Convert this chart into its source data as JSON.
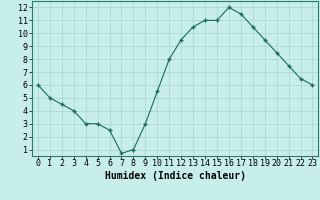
{
  "x": [
    0,
    1,
    2,
    3,
    4,
    5,
    6,
    7,
    8,
    9,
    10,
    11,
    12,
    13,
    14,
    15,
    16,
    17,
    18,
    19,
    20,
    21,
    22,
    23
  ],
  "y": [
    6.0,
    5.0,
    4.5,
    4.0,
    3.0,
    3.0,
    2.5,
    0.7,
    1.0,
    3.0,
    5.5,
    8.0,
    9.5,
    10.5,
    11.0,
    11.0,
    12.0,
    11.5,
    10.5,
    9.5,
    8.5,
    7.5,
    6.5,
    6.0
  ],
  "line_color": "#1a6b5e",
  "marker_color": "#1a6b5e",
  "bg_color": "#c8eeec",
  "grid_color": "#a8d4d0",
  "xlabel": "Humidex (Indice chaleur)",
  "xlabel_fontsize": 7,
  "xlim": [
    -0.5,
    23.5
  ],
  "ylim": [
    0.5,
    12.5
  ],
  "xtick_labels": [
    "0",
    "1",
    "2",
    "3",
    "4",
    "5",
    "6",
    "7",
    "8",
    "9",
    "10",
    "11",
    "12",
    "13",
    "14",
    "15",
    "16",
    "17",
    "18",
    "19",
    "20",
    "21",
    "22",
    "23"
  ],
  "ytick_values": [
    1,
    2,
    3,
    4,
    5,
    6,
    7,
    8,
    9,
    10,
    11,
    12
  ],
  "tick_fontsize": 6,
  "spine_color": "#2a7a6e"
}
